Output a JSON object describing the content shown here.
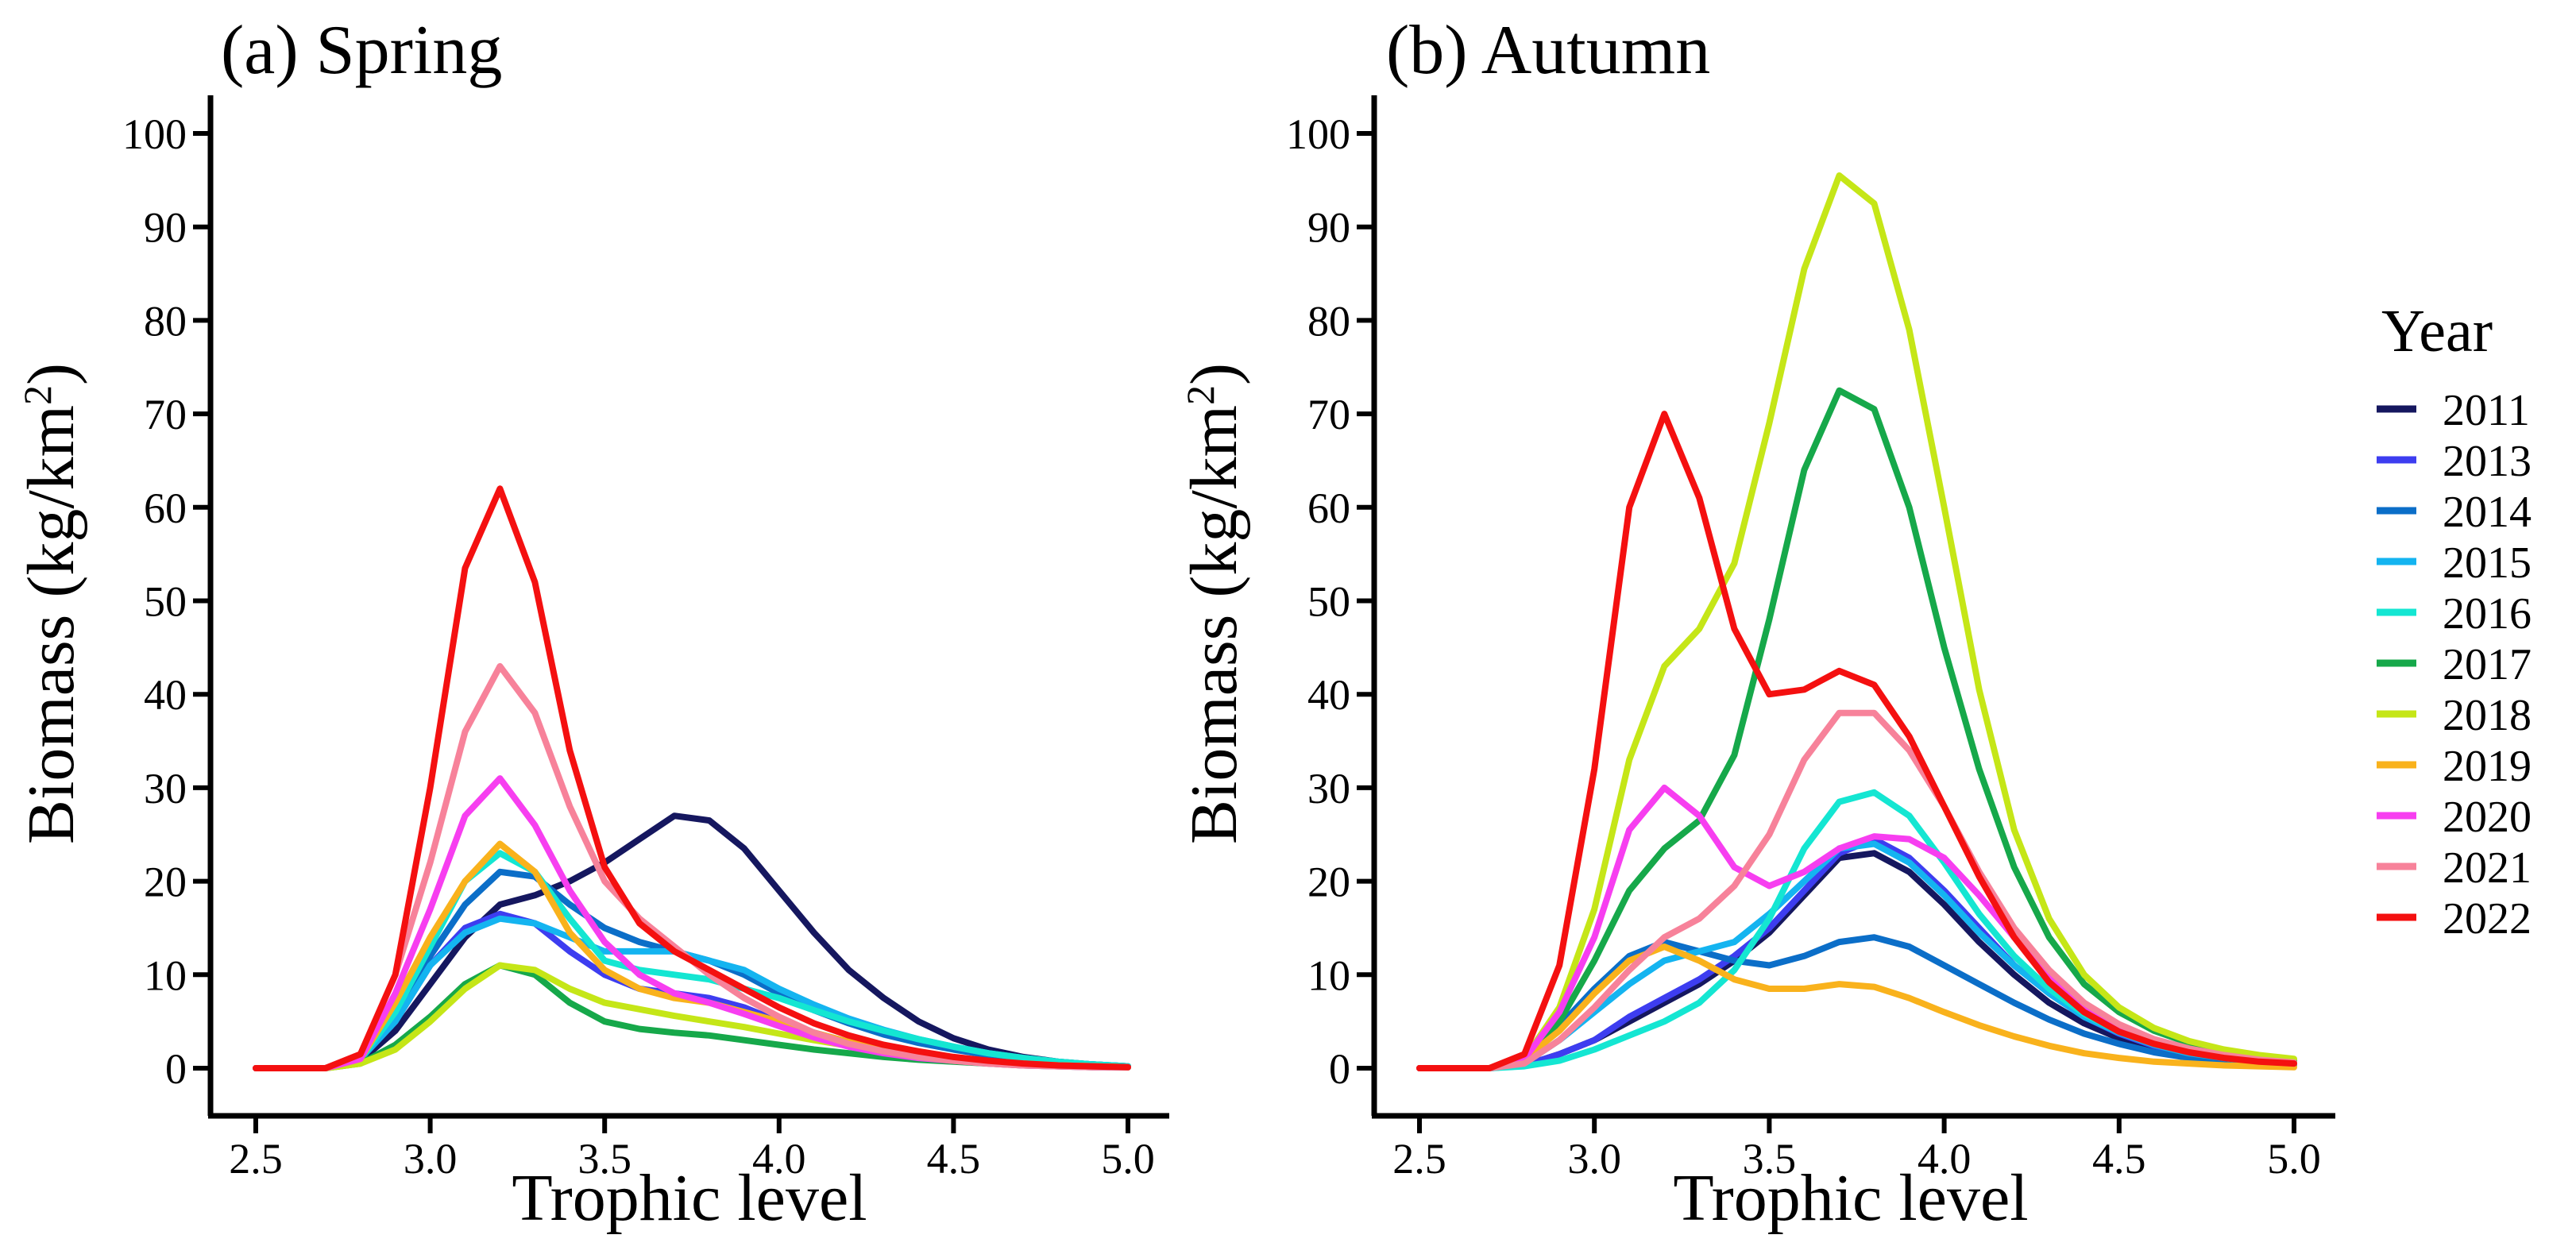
{
  "chart_data": [
    {
      "type": "line",
      "title": "(a) Spring",
      "xlabel": "Trophic level",
      "ylabel_main": "Biomass (kg/km",
      "ylabel_sup": "2",
      "ylabel_close": ")",
      "xlim": [
        2.5,
        5.0
      ],
      "ylim": [
        0,
        100
      ],
      "xticks": [
        "2.5",
        "3.0",
        "3.5",
        "4.0",
        "4.5",
        "5.0"
      ],
      "yticks": [
        "0",
        "10",
        "20",
        "30",
        "40",
        "50",
        "60",
        "70",
        "80",
        "90",
        "100"
      ],
      "x": [
        2.5,
        2.6,
        2.7,
        2.8,
        2.9,
        3.0,
        3.1,
        3.2,
        3.3,
        3.4,
        3.5,
        3.6,
        3.7,
        3.8,
        3.9,
        4.0,
        4.1,
        4.2,
        4.3,
        4.4,
        4.5,
        4.6,
        4.7,
        4.8,
        4.9,
        5.0
      ],
      "series": [
        {
          "name": "2011",
          "values": [
            0,
            0,
            0,
            0.8,
            4,
            9,
            14,
            17.5,
            18.5,
            20,
            22,
            24.5,
            27,
            26.5,
            23.5,
            19,
            14.5,
            10.5,
            7.5,
            5,
            3.2,
            2,
            1.2,
            0.7,
            0.4,
            0.2
          ]
        },
        {
          "name": "2013",
          "values": [
            0,
            0,
            0,
            1,
            5,
            11,
            15,
            16.5,
            15.5,
            12.5,
            10,
            8.5,
            8,
            7.5,
            6.5,
            5,
            3.8,
            2.8,
            2,
            1.4,
            1,
            0.7,
            0.5,
            0.3,
            0.2,
            0.1
          ]
        },
        {
          "name": "2014",
          "values": [
            0,
            0,
            0,
            1,
            6,
            12,
            17.5,
            21,
            20.5,
            17.5,
            15,
            13.5,
            12.5,
            11.5,
            10,
            8,
            6.2,
            4.8,
            3.6,
            2.7,
            2,
            1.4,
            1,
            0.6,
            0.4,
            0.2
          ]
        },
        {
          "name": "2015",
          "values": [
            0,
            0,
            0,
            1,
            5,
            11,
            14.5,
            16,
            15.5,
            14,
            12.5,
            12.5,
            12.5,
            11.5,
            10.5,
            8.5,
            6.8,
            5.3,
            4.1,
            3.1,
            2.3,
            1.6,
            1.1,
            0.7,
            0.4,
            0.2
          ]
        },
        {
          "name": "2016",
          "values": [
            0,
            0,
            0,
            1,
            6,
            13,
            20,
            23,
            21,
            16,
            11.5,
            10.5,
            10,
            9.5,
            8.5,
            7.5,
            6.2,
            5,
            4,
            3.1,
            2.3,
            1.6,
            1.1,
            0.7,
            0.4,
            0.2
          ]
        },
        {
          "name": "2017",
          "values": [
            0,
            0,
            0,
            0.5,
            2.5,
            5.5,
            9,
            11,
            10,
            7,
            5,
            4.2,
            3.8,
            3.5,
            3,
            2.5,
            2,
            1.6,
            1.2,
            0.9,
            0.7,
            0.5,
            0.3,
            0.2,
            0.1,
            0.1
          ]
        },
        {
          "name": "2018",
          "values": [
            0,
            0,
            0,
            0.5,
            2,
            5,
            8.5,
            11,
            10.5,
            8.5,
            7,
            6.3,
            5.6,
            5,
            4.4,
            3.7,
            3,
            2.4,
            1.8,
            1.3,
            0.9,
            0.6,
            0.4,
            0.3,
            0.2,
            0.1
          ]
        },
        {
          "name": "2019",
          "values": [
            0,
            0,
            0,
            1,
            7,
            14,
            20,
            24,
            21,
            14.5,
            10.5,
            8.5,
            7.5,
            7,
            6,
            5,
            3.8,
            2.8,
            2,
            1.4,
            1,
            0.7,
            0.5,
            0.3,
            0.2,
            0.1
          ]
        },
        {
          "name": "2020",
          "values": [
            0,
            0,
            0,
            1,
            8,
            17,
            27,
            31,
            26,
            19,
            13.5,
            10,
            8,
            7,
            5.8,
            4.5,
            3.3,
            2.3,
            1.6,
            1.1,
            0.8,
            0.5,
            0.3,
            0.2,
            0.1,
            0.1
          ]
        },
        {
          "name": "2021",
          "values": [
            0,
            0,
            0,
            1.5,
            10,
            22,
            36,
            43,
            38,
            28,
            20,
            16,
            13,
            10,
            7.5,
            5.5,
            3.8,
            2.6,
            1.8,
            1.2,
            0.8,
            0.5,
            0.3,
            0.2,
            0.1,
            0.1
          ]
        },
        {
          "name": "2022",
          "values": [
            0,
            0,
            0,
            1.5,
            10,
            30,
            53.5,
            62,
            52,
            34,
            21.5,
            15.5,
            12.5,
            10.5,
            8.5,
            6.5,
            4.8,
            3.5,
            2.5,
            1.8,
            1.2,
            0.8,
            0.5,
            0.3,
            0.2,
            0.1
          ]
        }
      ]
    },
    {
      "type": "line",
      "title": "(b) Autumn",
      "xlabel": "Trophic level",
      "ylabel_main": "Biomass (kg/km",
      "ylabel_sup": "2",
      "ylabel_close": ")",
      "xlim": [
        2.5,
        5.0
      ],
      "ylim": [
        0,
        100
      ],
      "xticks": [
        "2.5",
        "3.0",
        "3.5",
        "4.0",
        "4.5",
        "5.0"
      ],
      "yticks": [
        "0",
        "10",
        "20",
        "30",
        "40",
        "50",
        "60",
        "70",
        "80",
        "90",
        "100"
      ],
      "x": [
        2.5,
        2.6,
        2.7,
        2.8,
        2.9,
        3.0,
        3.1,
        3.2,
        3.3,
        3.4,
        3.5,
        3.6,
        3.7,
        3.8,
        3.9,
        4.0,
        4.1,
        4.2,
        4.3,
        4.4,
        4.5,
        4.6,
        4.7,
        4.8,
        4.9,
        5.0
      ],
      "series": [
        {
          "name": "2011",
          "values": [
            0,
            0,
            0,
            0.3,
            1.5,
            3,
            5,
            7,
            9,
            11.5,
            14.5,
            18.5,
            22.5,
            23,
            21,
            17.5,
            13.5,
            10,
            7,
            4.8,
            3.2,
            2.1,
            1.4,
            0.9,
            0.6,
            0.4
          ]
        },
        {
          "name": "2013",
          "values": [
            0,
            0,
            0,
            0.3,
            1.5,
            3,
            5.5,
            7.5,
            9.5,
            12,
            15,
            19,
            23,
            24.5,
            22.5,
            19,
            15,
            11,
            8,
            5.5,
            3.7,
            2.4,
            1.6,
            1,
            0.7,
            0.4
          ]
        },
        {
          "name": "2014",
          "values": [
            0,
            0,
            0,
            0.8,
            4.5,
            8.5,
            12,
            13.5,
            12.5,
            11.5,
            11,
            12,
            13.5,
            14,
            13,
            11,
            9,
            7,
            5.2,
            3.7,
            2.6,
            1.7,
            1.1,
            0.7,
            0.4,
            0.3
          ]
        },
        {
          "name": "2015",
          "values": [
            0,
            0,
            0,
            0.5,
            3,
            6,
            9,
            11.5,
            12.5,
            13.5,
            16.5,
            20,
            23.5,
            24,
            22,
            18.5,
            14.5,
            11,
            8,
            5.5,
            3.8,
            2.5,
            1.6,
            1.1,
            0.7,
            0.4
          ]
        },
        {
          "name": "2016",
          "values": [
            0,
            0,
            0,
            0.2,
            0.8,
            2,
            3.5,
            5,
            7,
            10.5,
            16,
            23.5,
            28.5,
            29.5,
            27,
            22,
            16.5,
            12,
            8.5,
            5.8,
            3.9,
            2.6,
            1.7,
            1.1,
            0.7,
            0.4
          ]
        },
        {
          "name": "2017",
          "values": [
            0,
            0,
            0,
            1,
            5,
            11.5,
            19,
            23.5,
            26.5,
            33.5,
            48,
            64,
            72.5,
            70.5,
            60,
            45,
            32,
            21.5,
            14,
            9,
            6,
            4,
            2.7,
            1.8,
            1.2,
            0.8
          ]
        },
        {
          "name": "2018",
          "values": [
            0,
            0,
            0,
            1,
            6.5,
            17,
            33,
            43,
            47,
            54,
            69,
            85.5,
            95.5,
            92.5,
            79,
            60,
            40.5,
            25.5,
            16,
            10,
            6.5,
            4.3,
            2.9,
            2,
            1.4,
            1
          ]
        },
        {
          "name": "2019",
          "values": [
            0,
            0,
            0,
            1,
            4,
            8,
            11.5,
            13,
            11.5,
            9.5,
            8.5,
            8.5,
            9,
            8.7,
            7.5,
            6,
            4.6,
            3.4,
            2.4,
            1.6,
            1.1,
            0.7,
            0.5,
            0.3,
            0.2,
            0.1
          ]
        },
        {
          "name": "2020",
          "values": [
            0,
            0,
            0,
            1,
            6,
            14,
            25.5,
            30,
            27,
            21.5,
            19.5,
            21,
            23.5,
            24.8,
            24.5,
            22.5,
            18.5,
            14,
            10,
            6.8,
            4.5,
            3,
            2,
            1.3,
            0.8,
            0.5
          ]
        },
        {
          "name": "2021",
          "values": [
            0,
            0,
            0,
            0.5,
            3,
            6.5,
            10.5,
            14,
            16,
            19.5,
            25,
            33,
            38,
            38,
            34,
            28,
            21,
            15,
            10.5,
            7,
            4.7,
            3.1,
            2.1,
            1.4,
            0.9,
            0.6
          ]
        },
        {
          "name": "2022",
          "values": [
            0,
            0,
            0,
            1.5,
            11,
            32,
            60,
            70,
            61,
            47,
            40,
            40.5,
            42.5,
            41,
            35.5,
            28,
            20.5,
            14,
            9.2,
            6,
            3.9,
            2.6,
            1.7,
            1.1,
            0.7,
            0.5
          ]
        }
      ]
    }
  ],
  "legend": {
    "title": "Year",
    "items": [
      {
        "label": "2011",
        "color": "#15175f"
      },
      {
        "label": "2013",
        "color": "#3d3df0"
      },
      {
        "label": "2014",
        "color": "#0b6ec8"
      },
      {
        "label": "2015",
        "color": "#14b4f0"
      },
      {
        "label": "2016",
        "color": "#14e6d2"
      },
      {
        "label": "2017",
        "color": "#16a84a"
      },
      {
        "label": "2018",
        "color": "#c5e617"
      },
      {
        "label": "2019",
        "color": "#f9b21c"
      },
      {
        "label": "2020",
        "color": "#f73ef0"
      },
      {
        "label": "2021",
        "color": "#f7829a"
      },
      {
        "label": "2022",
        "color": "#f41010"
      }
    ]
  }
}
